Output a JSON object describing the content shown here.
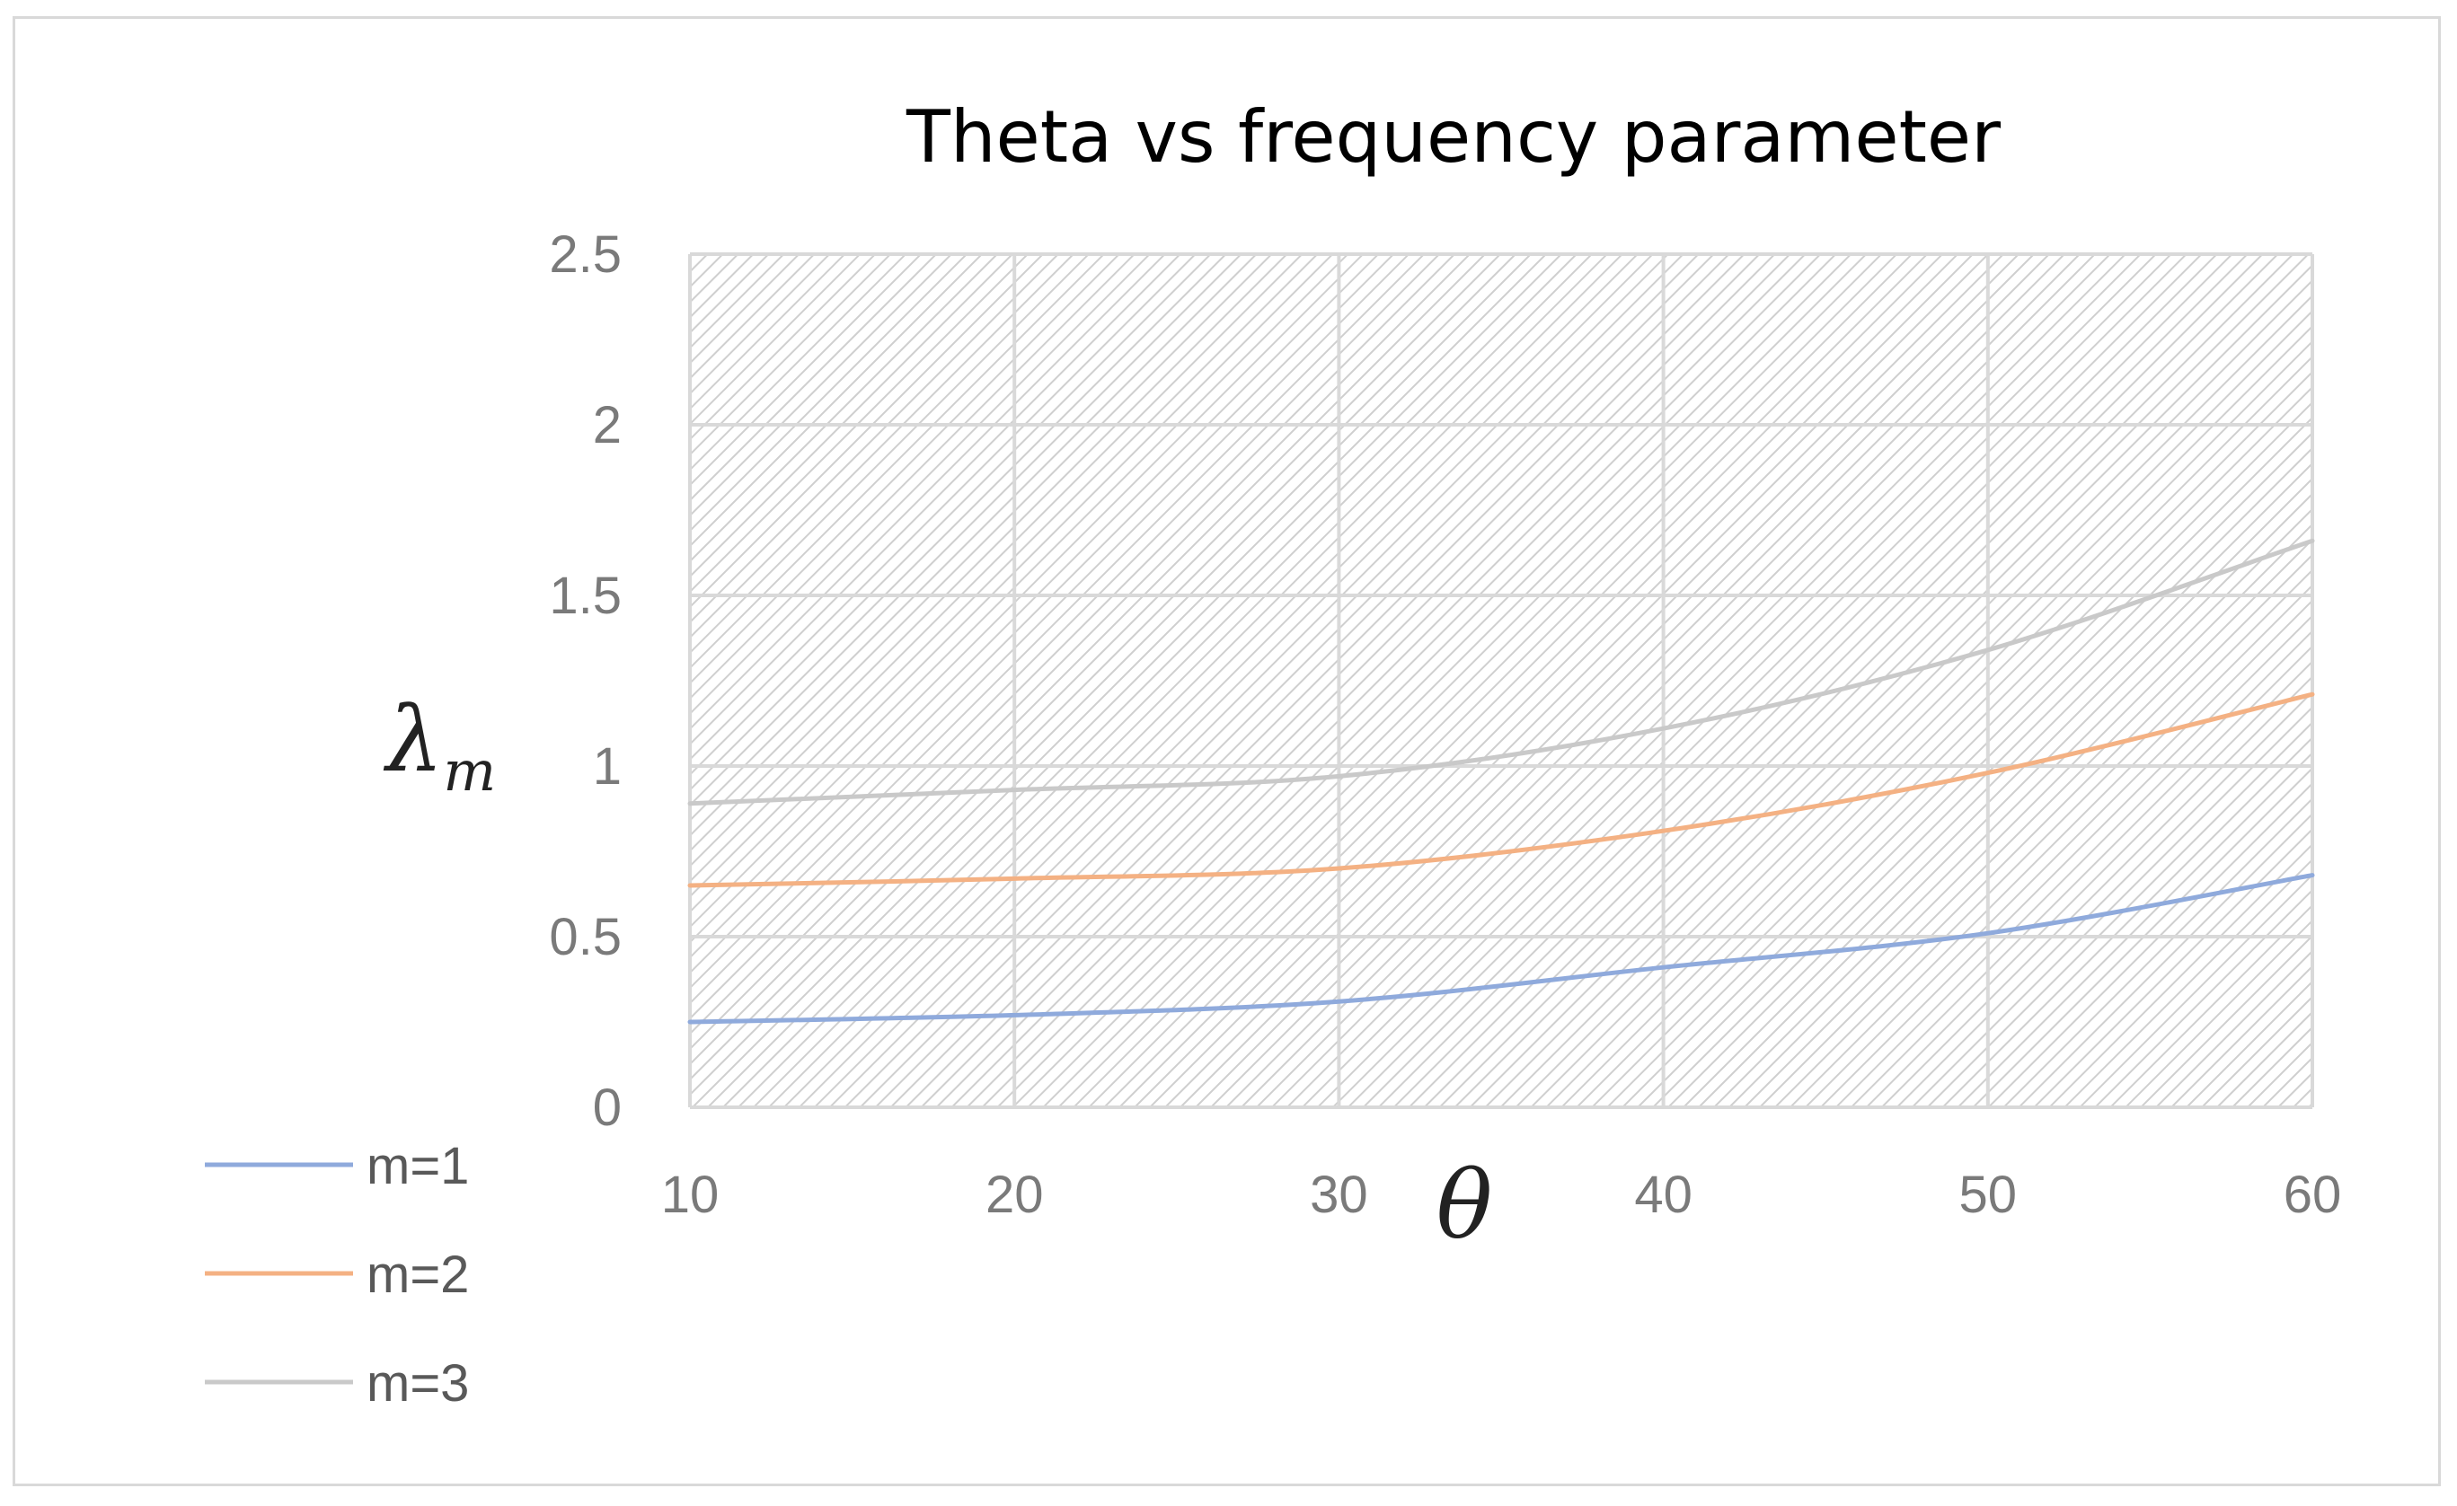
{
  "chart_data": {
    "type": "line",
    "title": "Theta vs frequency parameter",
    "xlabel": "θ",
    "ylabel": {
      "main": "λ",
      "subscript": "m"
    },
    "x": [
      10,
      20,
      30,
      40,
      50,
      60
    ],
    "xlim": [
      10,
      60
    ],
    "ylim": [
      0,
      2.5
    ],
    "xticks": [
      "10",
      "20",
      "30",
      "40",
      "50",
      "60"
    ],
    "yticks": [
      "0",
      "0.5",
      "1",
      "1.5",
      "2",
      "2.5"
    ],
    "grid": true,
    "legend_position": "bottom-left",
    "series": [
      {
        "name": "m=1",
        "color": "#8faadc",
        "values": [
          0.25,
          0.27,
          0.31,
          0.41,
          0.51,
          0.68
        ]
      },
      {
        "name": "m=2",
        "color": "#f4b183",
        "values": [
          0.65,
          0.67,
          0.7,
          0.81,
          0.98,
          1.21
        ]
      },
      {
        "name": "m=3",
        "color": "#c9c9c9",
        "values": [
          0.89,
          0.93,
          0.97,
          1.11,
          1.34,
          1.66
        ]
      }
    ]
  }
}
